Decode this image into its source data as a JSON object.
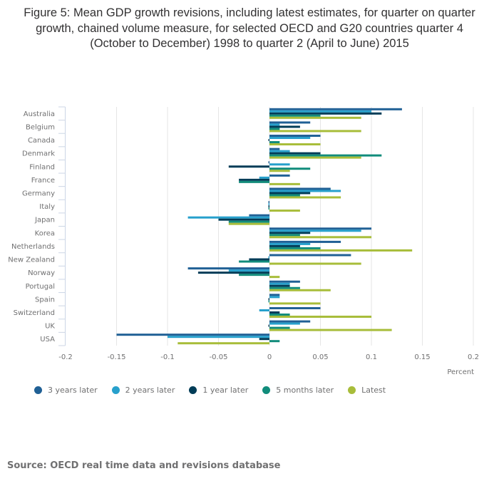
{
  "chart_data": {
    "type": "bar",
    "orientation": "horizontal",
    "title": "Figure 5: Mean GDP growth revisions, including latest estimates, for quarter on quarter growth, chained volume measure, for selected OECD and G20 countries quarter 4 (October to December) 1998 to quarter 2 (April to June) 2015",
    "xlabel": "Percent",
    "ylabel": "",
    "xlim": [
      -0.2,
      0.2
    ],
    "x_ticks": [
      -0.2,
      -0.15,
      -0.1,
      -0.05,
      0,
      0.05,
      0.1,
      0.15,
      0.2
    ],
    "x_tick_labels": [
      "-0.2",
      "-0.15",
      "-0.1",
      "-0.05",
      "0",
      "0.05",
      "0.1",
      "0.15",
      "0.2"
    ],
    "grid": true,
    "legend_position": "bottom-left",
    "categories": [
      "Australia",
      "Belgium",
      "Canada",
      "Denmark",
      "Finland",
      "France",
      "Germany",
      "Italy",
      "Japan",
      "Korea",
      "Netherlands",
      "New Zealand",
      "Norway",
      "Portugal",
      "Spain",
      "Switzerland",
      "UK",
      "USA"
    ],
    "series": [
      {
        "name": "3 years later",
        "color": "#206095",
        "values": [
          0.13,
          0.04,
          0.05,
          0.01,
          -0.001,
          0.02,
          0.06,
          -0.001,
          -0.02,
          0.1,
          0.07,
          0.08,
          -0.08,
          0.03,
          0.01,
          0.05,
          0.04,
          -0.15
        ]
      },
      {
        "name": "2 years later",
        "color": "#27a0cc",
        "values": [
          0.1,
          0.01,
          0.04,
          0.02,
          0.02,
          -0.01,
          0.07,
          -0.001,
          -0.08,
          0.09,
          0.04,
          -0.001,
          -0.04,
          0.02,
          0.01,
          -0.01,
          0.03,
          -0.1
        ]
      },
      {
        "name": "1 year later",
        "color": "#003c57",
        "values": [
          0.11,
          0.03,
          -0.001,
          0.05,
          -0.04,
          -0.03,
          0.04,
          -0.001,
          -0.05,
          0.04,
          0.03,
          -0.02,
          -0.07,
          0.02,
          -0.001,
          0.01,
          -0.001,
          -0.01
        ]
      },
      {
        "name": "5 months later",
        "color": "#118c7b",
        "values": [
          0.05,
          0.01,
          0.01,
          0.11,
          0.04,
          -0.03,
          0.03,
          -0.001,
          -0.04,
          0.03,
          0.05,
          -0.03,
          -0.03,
          0.03,
          -0.001,
          0.02,
          0.02,
          0.01
        ]
      },
      {
        "name": "Latest",
        "color": "#a8bd3a",
        "values": [
          0.09,
          0.09,
          0.05,
          0.09,
          0.02,
          0.03,
          0.07,
          0.03,
          -0.04,
          0.1,
          0.14,
          0.09,
          0.01,
          0.06,
          0.05,
          0.1,
          0.12,
          -0.09
        ]
      }
    ]
  },
  "source": "Source: OECD real time data and revisions database"
}
